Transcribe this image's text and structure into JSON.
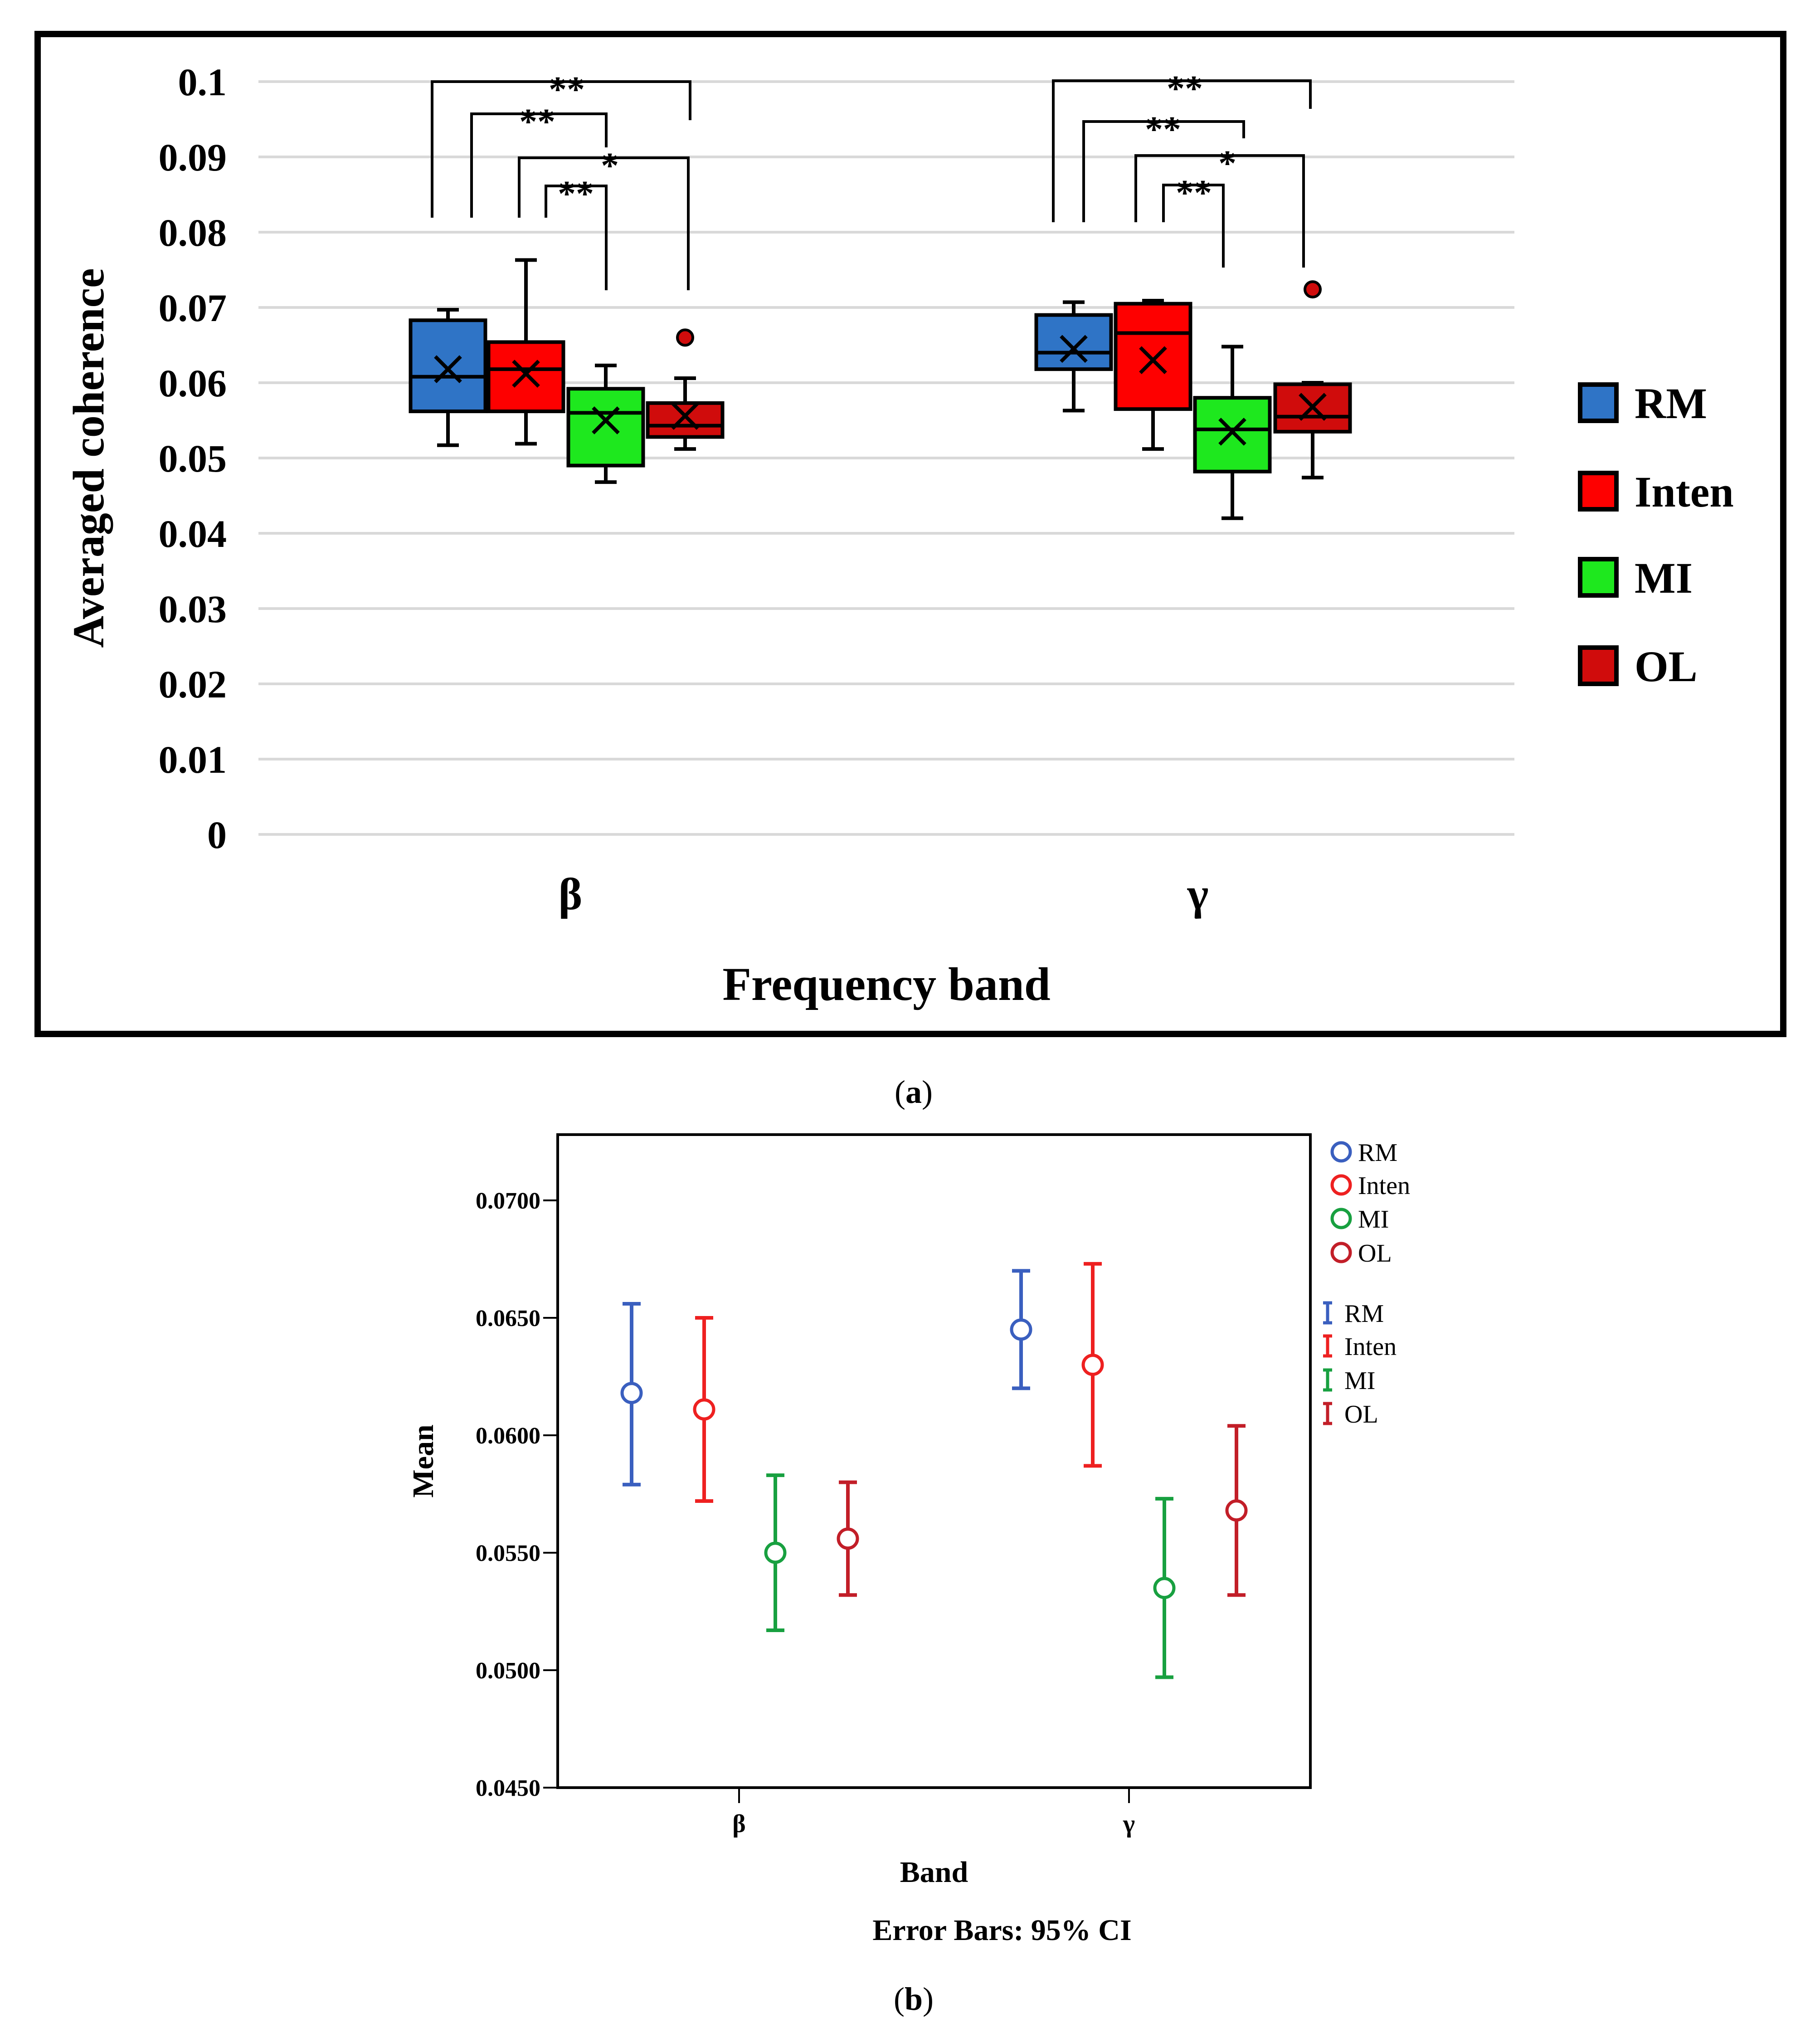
{
  "colors": {
    "RM": "#2f74c6",
    "Inten": "#fe0000",
    "MI": "#1ee81e",
    "OL": "#d00c0c",
    "ci_RM": "#3a5fbf",
    "ci_Inten": "#ee2020",
    "ci_MI": "#18a040",
    "ci_OL": "#c21e28",
    "grid": "#d9d9d9",
    "frame": "#000000"
  },
  "chart_data": [
    {
      "id": "a",
      "type": "boxplot",
      "panel_label": "(a)",
      "panel_letter": "a",
      "xlabel": "Frequency band",
      "ylabel": "Averaged coherence",
      "ylim": [
        0,
        0.1
      ],
      "yticks": [
        0,
        0.01,
        0.02,
        0.03,
        0.04,
        0.05,
        0.06,
        0.07,
        0.08,
        0.09,
        0.1
      ],
      "ytick_labels": [
        "0",
        "0.01",
        "0.02",
        "0.03",
        "0.04",
        "0.05",
        "0.06",
        "0.07",
        "0.08",
        "0.09",
        "0.1"
      ],
      "grid": true,
      "categories": [
        "β",
        "γ"
      ],
      "legend_position": "right",
      "legend": [
        "RM",
        "Inten",
        "MI",
        "OL"
      ],
      "groups": [
        {
          "category": "β",
          "boxes": [
            {
              "series": "RM",
              "min": 0.0517,
              "q1": 0.0562,
              "median": 0.0608,
              "q3": 0.0683,
              "max": 0.0697,
              "mean": 0.0618,
              "outliers": []
            },
            {
              "series": "Inten",
              "min": 0.0519,
              "q1": 0.0562,
              "median": 0.0618,
              "q3": 0.0654,
              "max": 0.0763,
              "mean": 0.0612,
              "outliers": []
            },
            {
              "series": "MI",
              "min": 0.0468,
              "q1": 0.049,
              "median": 0.056,
              "q3": 0.0592,
              "max": 0.0623,
              "mean": 0.055,
              "outliers": []
            },
            {
              "series": "OL",
              "min": 0.0512,
              "q1": 0.0528,
              "median": 0.0543,
              "q3": 0.0573,
              "max": 0.0606,
              "mean": 0.0556,
              "outliers": [
                0.066
              ]
            }
          ],
          "significance": [
            {
              "from": "RM",
              "to": "MI",
              "label": "**"
            },
            {
              "from": "RM",
              "to": "OL",
              "label": "**"
            },
            {
              "from": "Inten",
              "to": "MI",
              "label": "**"
            },
            {
              "from": "Inten",
              "to": "OL",
              "label": "*"
            }
          ]
        },
        {
          "category": "γ",
          "boxes": [
            {
              "series": "RM",
              "min": 0.0563,
              "q1": 0.0618,
              "median": 0.064,
              "q3": 0.069,
              "max": 0.0707,
              "mean": 0.0645,
              "outliers": []
            },
            {
              "series": "Inten",
              "min": 0.0512,
              "q1": 0.0565,
              "median": 0.0666,
              "q3": 0.0705,
              "max": 0.0709,
              "mean": 0.063,
              "outliers": []
            },
            {
              "series": "MI",
              "min": 0.042,
              "q1": 0.0482,
              "median": 0.0538,
              "q3": 0.058,
              "max": 0.0648,
              "mean": 0.0535,
              "outliers": []
            },
            {
              "series": "OL",
              "min": 0.0474,
              "q1": 0.0535,
              "median": 0.0555,
              "q3": 0.0598,
              "max": 0.06,
              "mean": 0.0568,
              "outliers": [
                0.0724
              ]
            }
          ],
          "significance": [
            {
              "from": "RM",
              "to": "MI",
              "label": "**"
            },
            {
              "from": "RM",
              "to": "OL",
              "label": "**"
            },
            {
              "from": "Inten",
              "to": "MI",
              "label": "**"
            },
            {
              "from": "Inten",
              "to": "OL",
              "label": "*"
            }
          ]
        }
      ]
    },
    {
      "id": "b",
      "type": "errorbar",
      "panel_label": "(b)",
      "panel_letter": "b",
      "xlabel": "Band",
      "ylabel": "Mean",
      "note": "Error Bars: 95% CI",
      "ylim": [
        0.045,
        0.0728
      ],
      "yticks": [
        0.045,
        0.05,
        0.055,
        0.06,
        0.065,
        0.07
      ],
      "ytick_labels": [
        "0.0450",
        "0.0500",
        "0.0550",
        "0.0600",
        "0.0650",
        "0.0700"
      ],
      "grid": false,
      "categories": [
        "β",
        "γ"
      ],
      "legend_position": "top-right",
      "legend_points": [
        "RM",
        "Inten",
        "MI",
        "OL"
      ],
      "legend_bars": [
        "RM",
        "Inten",
        "MI",
        "OL"
      ],
      "series": [
        {
          "name": "RM",
          "values": [
            0.0618,
            0.0645
          ],
          "ci_low": [
            0.0579,
            0.062
          ],
          "ci_high": [
            0.0656,
            0.067
          ]
        },
        {
          "name": "Inten",
          "values": [
            0.0611,
            0.063
          ],
          "ci_low": [
            0.0572,
            0.0587
          ],
          "ci_high": [
            0.065,
            0.0673
          ]
        },
        {
          "name": "MI",
          "values": [
            0.055,
            0.0535
          ],
          "ci_low": [
            0.0517,
            0.0497
          ],
          "ci_high": [
            0.0583,
            0.0573
          ]
        },
        {
          "name": "OL",
          "values": [
            0.0556,
            0.0568
          ],
          "ci_low": [
            0.0532,
            0.0532
          ],
          "ci_high": [
            0.058,
            0.0604
          ]
        }
      ]
    }
  ]
}
